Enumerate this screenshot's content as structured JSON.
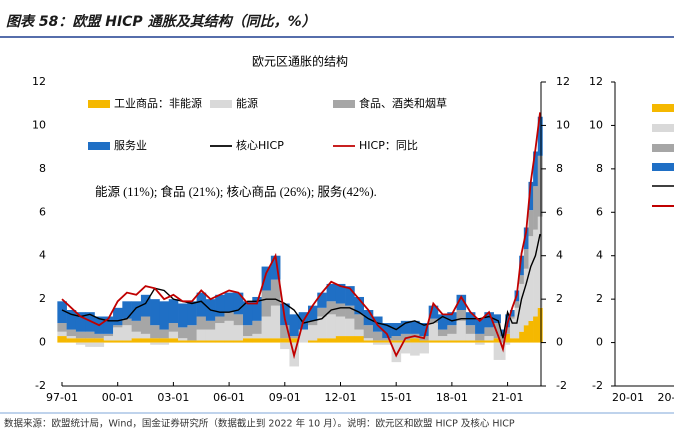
{
  "header": {
    "title": "图表 58：欧盟 HICP 通胀及其结构（同比，%）"
  },
  "chart_data": [
    {
      "type": "area",
      "stacked": true,
      "title": "欧元区通胀的结构",
      "annotation": "能源 (11%); 食品 (21%); 核心商品 (26%); 服务(42%).",
      "x": [
        1997,
        1997.5,
        1998,
        1998.5,
        1999,
        1999.5,
        2000,
        2000.5,
        2001,
        2001.5,
        2002,
        2002.5,
        2003,
        2003.5,
        2004,
        2004.5,
        2005,
        2005.5,
        2006,
        2006.5,
        2007,
        2007.5,
        2008,
        2008.5,
        2009,
        2009.5,
        2010,
        2010.5,
        2011,
        2011.5,
        2012,
        2012.5,
        2013,
        2013.5,
        2014,
        2014.5,
        2015,
        2015.5,
        2016,
        2016.5,
        2017,
        2017.5,
        2018,
        2018.5,
        2019,
        2019.5,
        2020,
        2020.5,
        2020.75,
        2021,
        2021.25,
        2021.5,
        2021.75,
        2022,
        2022.25,
        2022.5,
        2022.75
      ],
      "xlim": [
        1997,
        2022.8
      ],
      "xticks": [
        {
          "value": 1997,
          "label": "97-01"
        },
        {
          "value": 2000,
          "label": "00-01"
        },
        {
          "value": 2003,
          "label": "03-01"
        },
        {
          "value": 2006,
          "label": "06-01"
        },
        {
          "value": 2009,
          "label": "09-01"
        },
        {
          "value": 2012,
          "label": "12-01"
        },
        {
          "value": 2015,
          "label": "15-01"
        },
        {
          "value": 2018,
          "label": "18-01"
        },
        {
          "value": 2021,
          "label": "21-01"
        }
      ],
      "ylim": [
        -2,
        12
      ],
      "yticks": [
        -2,
        0,
        2,
        4,
        6,
        8,
        10,
        12
      ],
      "y2lim": [
        -2,
        12
      ],
      "y2ticks": [
        -2,
        0,
        2,
        4,
        6,
        8,
        10,
        12
      ],
      "legend": "upper left",
      "series": [
        {
          "name": "工业商品：非能源",
          "type": "area",
          "color": "#f5b800",
          "values": [
            0.3,
            0.2,
            0.2,
            0.2,
            0.2,
            0.1,
            0.1,
            0.1,
            0.2,
            0.2,
            0.2,
            0.2,
            0.2,
            0.1,
            0.1,
            0.1,
            0.1,
            0.1,
            0.1,
            0.1,
            0.2,
            0.2,
            0.2,
            0.2,
            0.2,
            0.2,
            0.0,
            0.1,
            0.2,
            0.2,
            0.3,
            0.3,
            0.3,
            0.1,
            0.1,
            0.1,
            0.1,
            0.1,
            0.2,
            0.1,
            0.1,
            0.1,
            0.1,
            0.1,
            0.1,
            0.1,
            0.1,
            0.2,
            0.0,
            0.4,
            0.2,
            0.2,
            0.5,
            0.8,
            1.0,
            1.2,
            1.6
          ]
        },
        {
          "name": "能源",
          "type": "area",
          "color": "#d9d9d9",
          "values": [
            0.2,
            0.1,
            -0.1,
            -0.2,
            -0.2,
            0.2,
            0.6,
            0.7,
            0.3,
            0.2,
            -0.1,
            -0.1,
            0.3,
            0.1,
            0.0,
            0.5,
            0.5,
            0.8,
            0.9,
            0.7,
            0.1,
            0.2,
            1.0,
            1.5,
            -0.3,
            -1.1,
            0.6,
            0.7,
            1.0,
            1.1,
            0.9,
            0.8,
            0.3,
            0.1,
            -0.1,
            -0.1,
            -0.9,
            -0.5,
            -0.6,
            -0.5,
            0.8,
            0.2,
            0.3,
            0.9,
            0.3,
            -0.1,
            0.2,
            -0.8,
            -0.8,
            -0.1,
            0.9,
            1.4,
            2.2,
            2.6,
            3.9,
            4.0,
            4.2
          ]
        },
        {
          "name": "食品、酒类和烟草",
          "type": "area",
          "color": "#a6a6a6",
          "values": [
            0.4,
            0.3,
            0.3,
            0.3,
            0.2,
            0.1,
            0.1,
            0.3,
            0.5,
            0.8,
            0.6,
            0.4,
            0.4,
            0.5,
            0.7,
            0.6,
            0.4,
            0.3,
            0.4,
            0.5,
            0.5,
            0.6,
            1.2,
            1.2,
            0.6,
            0.1,
            0.0,
            0.2,
            0.4,
            0.6,
            0.6,
            0.6,
            0.7,
            0.6,
            0.4,
            0.1,
            0.2,
            0.3,
            0.2,
            0.2,
            0.2,
            0.3,
            0.4,
            0.5,
            0.4,
            0.3,
            0.4,
            0.7,
            0.3,
            0.3,
            0.1,
            0.3,
            0.4,
            0.9,
            1.2,
            2.0,
            2.8
          ]
        },
        {
          "name": "服务业",
          "type": "area",
          "color": "#1f6fc5",
          "values": [
            1.0,
            0.9,
            0.9,
            0.9,
            0.8,
            0.8,
            0.8,
            0.8,
            0.9,
            1.0,
            1.2,
            1.3,
            1.1,
            1.1,
            1.1,
            1.1,
            1.0,
            1.0,
            0.9,
            1.0,
            1.1,
            1.1,
            1.1,
            1.1,
            1.0,
            1.0,
            0.8,
            0.7,
            0.7,
            0.8,
            0.9,
            0.9,
            0.8,
            0.7,
            0.7,
            0.7,
            0.6,
            0.6,
            0.6,
            0.6,
            0.6,
            0.7,
            0.6,
            0.7,
            0.6,
            0.7,
            0.7,
            0.4,
            0.3,
            0.6,
            0.3,
            0.5,
            0.9,
            1.0,
            1.3,
            1.6,
            1.8
          ]
        },
        {
          "name": "核心HICP",
          "type": "line",
          "color": "#000000",
          "values": [
            1.5,
            1.3,
            1.2,
            1.3,
            1.1,
            1.0,
            1.0,
            1.1,
            1.6,
            1.8,
            2.5,
            2.4,
            2.0,
            1.9,
            1.8,
            1.9,
            1.5,
            1.4,
            1.4,
            1.5,
            1.9,
            1.9,
            2.0,
            2.0,
            1.8,
            1.5,
            0.9,
            1.0,
            1.1,
            1.5,
            1.6,
            1.6,
            1.4,
            1.1,
            0.9,
            0.8,
            0.6,
            0.9,
            1.0,
            0.8,
            0.9,
            1.2,
            1.0,
            1.1,
            1.1,
            1.1,
            1.2,
            1.0,
            0.2,
            1.4,
            0.9,
            0.9,
            2.0,
            2.7,
            3.5,
            4.0,
            5.0
          ]
        },
        {
          "name": "HICP：同比",
          "type": "line",
          "color": "#c00000",
          "values": [
            2.0,
            1.6,
            1.2,
            1.0,
            0.8,
            1.1,
            1.9,
            2.3,
            2.2,
            2.6,
            2.5,
            2.0,
            2.2,
            1.9,
            1.9,
            2.4,
            2.0,
            2.2,
            2.4,
            2.3,
            1.8,
            1.8,
            3.2,
            4.0,
            1.1,
            -0.6,
            1.0,
            1.7,
            2.3,
            2.8,
            2.6,
            2.5,
            2.0,
            1.5,
            0.8,
            0.4,
            -0.6,
            0.2,
            0.3,
            0.2,
            1.8,
            1.3,
            1.3,
            2.1,
            1.4,
            1.0,
            1.4,
            0.3,
            -0.3,
            0.9,
            1.6,
            2.2,
            4.1,
            5.1,
            7.4,
            8.9,
            10.6
          ]
        }
      ]
    },
    {
      "type": "line",
      "categories": [
        "20-01",
        "20-0"
      ],
      "ylim": [
        -2,
        12
      ],
      "yticks": [
        -2,
        0,
        2,
        4,
        6,
        8,
        10,
        12
      ]
    }
  ],
  "footer": {
    "source": "数据来源：欧盟统计局，Wind，国金证券研究所（数据截止到 2022 年 10 月）。说明：欧元区和欧盟 HICP 及核心 HICP"
  }
}
